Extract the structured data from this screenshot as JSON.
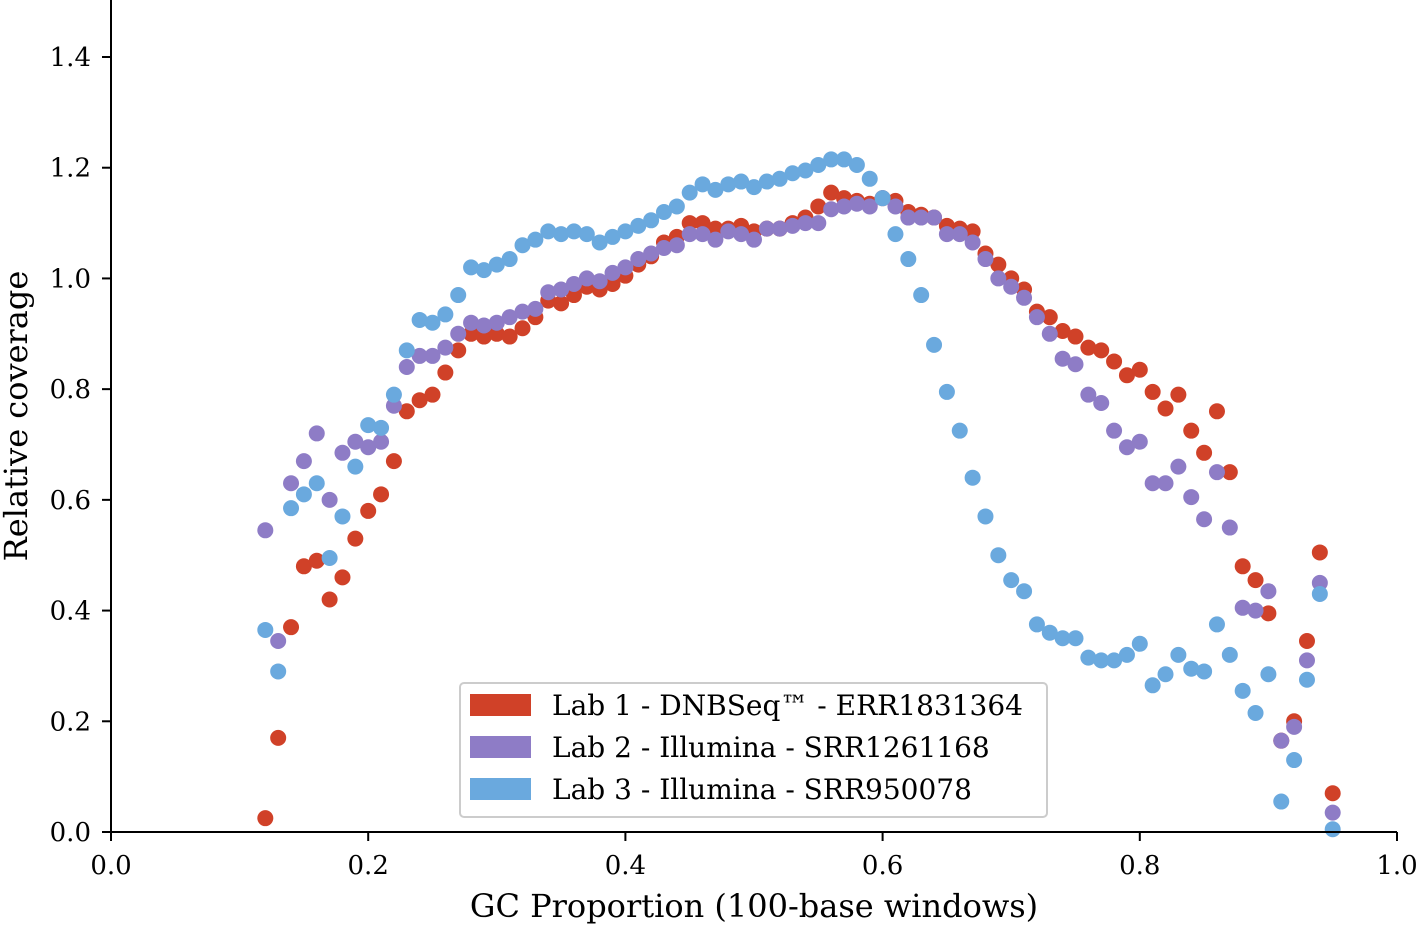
{
  "chart_data": {
    "type": "scatter",
    "title": "",
    "xlabel": "GC Proportion (100-base windows)",
    "ylabel": "Relative coverage",
    "xlim": [
      0.0,
      1.0
    ],
    "ylim": [
      0.0,
      1.4
    ],
    "xticks": [
      "0.0",
      "0.2",
      "0.4",
      "0.6",
      "0.8",
      "1.0"
    ],
    "yticks": [
      "0.0",
      "0.2",
      "0.4",
      "0.6",
      "0.8",
      "1.0",
      "1.2",
      "1.4"
    ],
    "grid": false,
    "legend_position": "bottom-center",
    "x_start": 0.12,
    "x_step": 0.01,
    "series": [
      {
        "name": "Lab 1 - DNBSeq™ - ERR1831364",
        "color": "#d04128",
        "values": [
          0.025,
          0.17,
          0.37,
          0.48,
          0.49,
          0.42,
          0.46,
          0.53,
          0.58,
          0.61,
          0.67,
          0.76,
          0.78,
          0.79,
          0.83,
          0.87,
          0.9,
          0.895,
          0.9,
          0.895,
          0.91,
          0.93,
          0.96,
          0.955,
          0.97,
          0.985,
          0.98,
          0.99,
          1.005,
          1.025,
          1.04,
          1.065,
          1.075,
          1.1,
          1.1,
          1.09,
          1.09,
          1.095,
          1.085,
          1.09,
          1.09,
          1.1,
          1.11,
          1.13,
          1.155,
          1.145,
          1.14,
          1.135,
          1.145,
          1.14,
          1.12,
          1.115,
          1.11,
          1.095,
          1.09,
          1.085,
          1.045,
          1.025,
          1.0,
          0.98,
          0.94,
          0.93,
          0.905,
          0.895,
          0.875,
          0.87,
          0.85,
          0.825,
          0.835,
          0.795,
          0.765,
          0.79,
          0.725,
          0.685,
          0.76,
          0.65,
          0.48,
          0.455,
          0.395,
          0.165,
          0.2,
          0.345,
          0.505,
          0.07
        ]
      },
      {
        "name": "Lab 2 - Illumina - SRR1261168",
        "color": "#8e7cc6",
        "values": [
          0.545,
          0.345,
          0.63,
          0.67,
          0.72,
          0.6,
          0.685,
          0.705,
          0.695,
          0.705,
          0.77,
          0.84,
          0.86,
          0.86,
          0.875,
          0.9,
          0.92,
          0.915,
          0.92,
          0.93,
          0.94,
          0.945,
          0.975,
          0.98,
          0.99,
          1.0,
          0.995,
          1.01,
          1.02,
          1.035,
          1.045,
          1.055,
          1.06,
          1.08,
          1.08,
          1.07,
          1.085,
          1.08,
          1.07,
          1.09,
          1.09,
          1.095,
          1.1,
          1.1,
          1.125,
          1.13,
          1.135,
          1.13,
          1.145,
          1.13,
          1.11,
          1.11,
          1.11,
          1.08,
          1.08,
          1.065,
          1.035,
          1.0,
          0.985,
          0.965,
          0.93,
          0.9,
          0.855,
          0.845,
          0.79,
          0.775,
          0.725,
          0.695,
          0.705,
          0.63,
          0.63,
          0.66,
          0.605,
          0.565,
          0.65,
          0.55,
          0.405,
          0.4,
          0.435,
          0.165,
          0.19,
          0.31,
          0.45,
          0.035
        ]
      },
      {
        "name": "Lab 3 - Illumina - SRR950078",
        "color": "#6aa9de",
        "values": [
          0.365,
          0.29,
          0.585,
          0.61,
          0.63,
          0.495,
          0.57,
          0.66,
          0.735,
          0.73,
          0.79,
          0.87,
          0.925,
          0.92,
          0.935,
          0.97,
          1.02,
          1.015,
          1.025,
          1.035,
          1.06,
          1.07,
          1.085,
          1.08,
          1.085,
          1.08,
          1.065,
          1.075,
          1.085,
          1.095,
          1.105,
          1.12,
          1.13,
          1.155,
          1.17,
          1.16,
          1.17,
          1.175,
          1.165,
          1.175,
          1.18,
          1.19,
          1.195,
          1.205,
          1.215,
          1.215,
          1.205,
          1.18,
          1.145,
          1.08,
          1.035,
          0.97,
          0.88,
          0.795,
          0.725,
          0.64,
          0.57,
          0.5,
          0.455,
          0.435,
          0.375,
          0.36,
          0.35,
          0.35,
          0.315,
          0.31,
          0.31,
          0.32,
          0.34,
          0.265,
          0.285,
          0.32,
          0.295,
          0.29,
          0.375,
          0.32,
          0.255,
          0.215,
          0.285,
          0.055,
          0.13,
          0.275,
          0.43,
          0.005
        ]
      }
    ]
  }
}
